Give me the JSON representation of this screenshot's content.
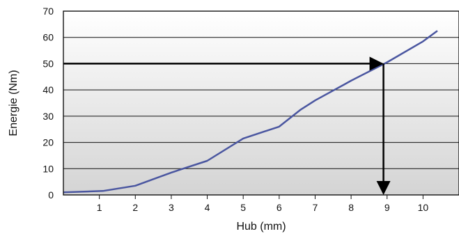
{
  "chart_data": {
    "type": "line",
    "xlabel": "Hub (mm)",
    "ylabel": "Energie (Nm)",
    "xlim": [
      0,
      11
    ],
    "ylim": [
      0,
      70
    ],
    "x_ticks": [
      "1",
      "2",
      "3",
      "4",
      "5",
      "6",
      "7",
      "8",
      "9",
      "10"
    ],
    "y_ticks": [
      "0",
      "10",
      "20",
      "30",
      "40",
      "50",
      "60",
      "70"
    ],
    "grid": "horizontal",
    "series": [
      {
        "x": [
          0,
          1.1,
          2.0,
          3.0,
          4.0,
          5.0,
          6.0,
          6.6,
          7.0,
          7.8,
          8.0,
          9.0,
          10.0,
          10.4
        ],
        "y": [
          1,
          1.5,
          3.5,
          8.5,
          13,
          21.5,
          26,
          32.5,
          36,
          42,
          43.5,
          50.5,
          58.5,
          62.5
        ],
        "color": "#4a56a0"
      }
    ],
    "annotation": {
      "type": "reading-arrows",
      "y_value": 50,
      "x_value": 8.9,
      "color": "#000000"
    },
    "background_gradient": [
      "#ffffff",
      "#d4d4d4"
    ]
  }
}
